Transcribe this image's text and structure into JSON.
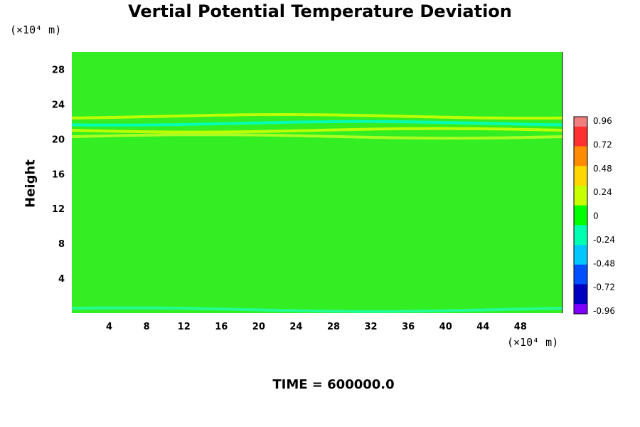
{
  "chart_data": {
    "type": "heatmap",
    "title": "Vertial Potential Temperature Deviation",
    "ylabel": "Height",
    "xunit": "(×10⁴ m)",
    "yunit": "(×10⁴ m)",
    "time_label": "TIME = 600000.0",
    "xlim": [
      0,
      52.5
    ],
    "ylim": [
      0,
      30
    ],
    "xticks": [
      "4",
      "8",
      "12",
      "16",
      "20",
      "24",
      "28",
      "32",
      "36",
      "40",
      "44",
      "48"
    ],
    "yticks": [
      "4",
      "8",
      "12",
      "16",
      "20",
      "24",
      "28"
    ],
    "colorbar": {
      "min": -1.0,
      "max": 1.0,
      "labels": [
        "0.96",
        "0.72",
        "0.48",
        "0.24",
        "0",
        "-0.24",
        "-0.48",
        "-0.72",
        "-0.96"
      ],
      "colors": [
        "#f08080",
        "#ff3030",
        "#ff8c00",
        "#ffd700",
        "#c8ff00",
        "#00ff00",
        "#00ffb0",
        "#00c8ff",
        "#0050ff",
        "#0000c0",
        "#8000ff"
      ]
    },
    "background_value": 0.0,
    "bands": [
      {
        "y": 21.0,
        "amplitude": 0.28,
        "note": "yellow"
      },
      {
        "y": 21.8,
        "amplitude": -0.22,
        "note": "cyan"
      },
      {
        "y": 22.6,
        "amplitude": 0.22,
        "note": "yellow"
      },
      {
        "y": 20.3,
        "amplitude": 0.12,
        "note": "yellow"
      },
      {
        "y": 0.4,
        "amplitude": -0.1,
        "note": "cyan"
      }
    ]
  }
}
